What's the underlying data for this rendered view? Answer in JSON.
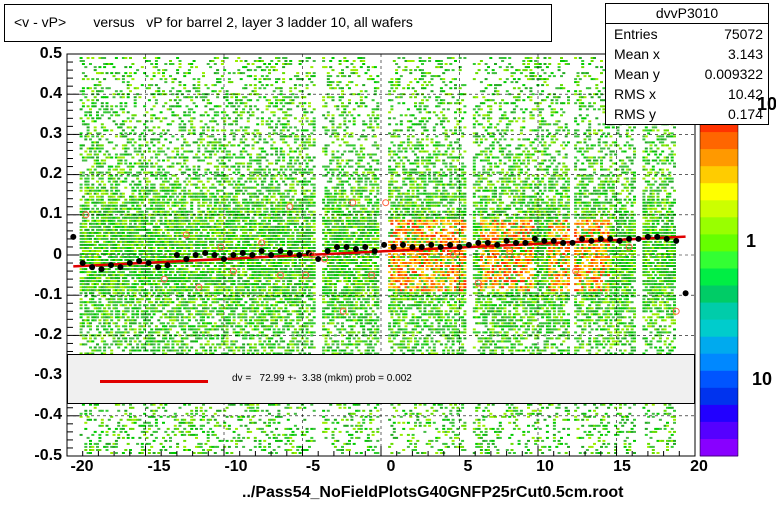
{
  "title": "<v - vP>       versus   vP for barrel 2, layer 3 ladder 10, all wafers",
  "stats": {
    "name": "dvvP3010",
    "rows": [
      {
        "label": "Entries",
        "value": "75072"
      },
      {
        "label": "Mean x",
        "value": "3.143"
      },
      {
        "label": "Mean y",
        "value": "0.009322"
      },
      {
        "label": "RMS x",
        "value": "10.42"
      },
      {
        "label": "RMS y",
        "value": "0.174"
      }
    ]
  },
  "fit_text": "dv =   72.99 +-  3.38 (mkm) prob = 0.002",
  "filename": "../Pass54_NoFieldPlotsG40GNFP25rCut0.5cm.root",
  "z_labels": [
    "10",
    "1",
    "10"
  ],
  "colors": {
    "fit_line": "#e00000",
    "profile_marker": "#000000",
    "alt_marker": "#ff6040",
    "heat_low": "#30c030",
    "heat_high": "#ff2000"
  },
  "chart_data": {
    "type": "heatmap",
    "title": "<v - vP>       versus   vP for barrel 2, layer 3 ladder 10, all wafers",
    "xlim": [
      -20,
      20
    ],
    "ylim": [
      -0.5,
      0.5
    ],
    "x_ticks": [
      "-20",
      "-15",
      "-10",
      "-5",
      "0",
      "5",
      "10",
      "15",
      "20"
    ],
    "y_ticks": [
      "-0.5",
      "-0.4",
      "-0.3",
      "-0.2",
      "-0.1",
      "0",
      "0.1",
      "0.2",
      "0.3",
      "0.4",
      "0.5"
    ],
    "grid": true,
    "profile_points": {
      "x": [
        -19.6,
        -19.0,
        -18.4,
        -17.8,
        -17.2,
        -16.6,
        -16.0,
        -15.4,
        -14.8,
        -14.2,
        -13.6,
        -13.0,
        -12.4,
        -11.8,
        -11.2,
        -10.6,
        -10.0,
        -9.4,
        -8.8,
        -8.2,
        -7.6,
        -7.0,
        -6.4,
        -5.8,
        -5.2,
        -4.6,
        -4.0,
        -3.4,
        -2.8,
        -2.2,
        -1.6,
        -1.0,
        -0.4,
        0.2,
        0.8,
        1.4,
        2.0,
        2.6,
        3.2,
        3.8,
        4.4,
        5.0,
        5.6,
        6.2,
        6.8,
        7.4,
        8.0,
        8.6,
        9.2,
        9.8,
        10.4,
        11.0,
        11.6,
        12.2,
        12.8,
        13.4,
        14.0,
        14.6,
        15.2,
        15.8,
        16.4,
        17.0,
        17.6,
        18.2,
        18.8,
        19.4
      ],
      "y": [
        0.045,
        -0.02,
        -0.03,
        -0.035,
        -0.025,
        -0.03,
        -0.02,
        -0.015,
        -0.02,
        -0.03,
        -0.025,
        0.0,
        -0.01,
        0.0,
        0.005,
        0.0,
        -0.01,
        0.0,
        0.005,
        0.0,
        0.01,
        0.0,
        0.01,
        0.005,
        0.0,
        0.005,
        -0.01,
        0.01,
        0.02,
        0.02,
        0.015,
        0.02,
        0.01,
        0.025,
        0.02,
        0.025,
        0.02,
        0.02,
        0.025,
        0.02,
        0.025,
        0.02,
        0.025,
        0.03,
        0.03,
        0.025,
        0.035,
        0.03,
        0.03,
        0.04,
        0.035,
        0.035,
        0.03,
        0.03,
        0.04,
        0.035,
        0.04,
        0.04,
        0.035,
        0.04,
        0.04,
        0.045,
        0.045,
        0.04,
        0.035,
        -0.095
      ]
    },
    "alt_points": {
      "x": [
        -18.8,
        -13.8,
        -12.4,
        -11.6,
        -10.2,
        -9.4,
        -7.6,
        -6.4,
        -5.8,
        -4.8,
        -4.4,
        -3.6,
        -2.4,
        -1.8,
        -0.6,
        0.3,
        4.6,
        6.2,
        8.2,
        12.4,
        15.8,
        18.8
      ],
      "y": [
        0.1,
        -0.06,
        0.05,
        -0.08,
        0.02,
        -0.04,
        0.03,
        -0.05,
        0.12,
        -0.05,
        0.0,
        -0.01,
        -0.14,
        0.13,
        -0.05,
        0.13,
        0.0,
        -0.07,
        0.01,
        -0.04,
        0.02,
        -0.14
      ]
    },
    "fit": {
      "slope": 0.0019,
      "intercept": 0.009,
      "x_range": [
        -19.6,
        19.4
      ]
    }
  }
}
